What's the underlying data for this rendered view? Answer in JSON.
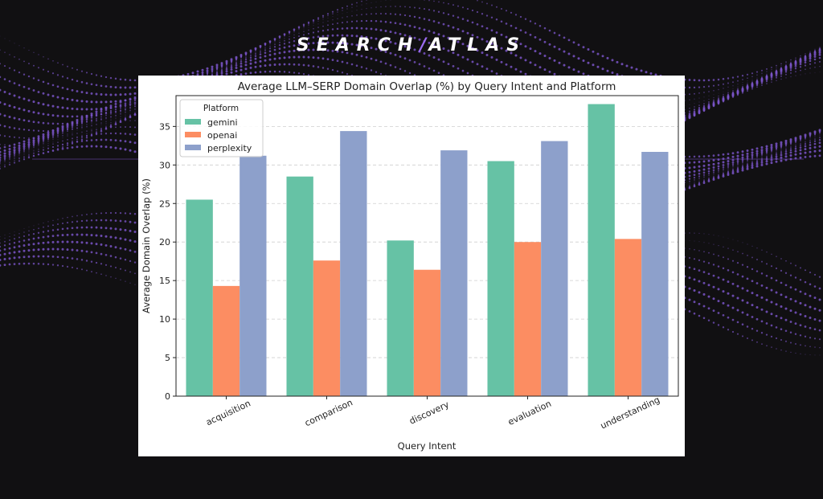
{
  "brand": {
    "left": "SEARCH",
    "separator": "/",
    "right": "ATLAS"
  },
  "colors": {
    "background": "#111012",
    "wave": "#7b55c9",
    "brand_accent": "#9b6cf2",
    "gemini": "#66c2a5",
    "openai": "#fc8d62",
    "perplexity": "#8da0cb"
  },
  "chart_data": {
    "type": "bar",
    "title": "Average LLM–SERP Domain Overlap (%) by Query Intent and Platform",
    "xlabel": "Query Intent",
    "ylabel": "Average Domain Overlap (%)",
    "ylim": [
      0,
      39
    ],
    "yticks": [
      0,
      5,
      10,
      15,
      20,
      25,
      30,
      35
    ],
    "grid": "y-dashed",
    "legend": {
      "title": "Platform",
      "placement": "top-left"
    },
    "categories": [
      "acquisition",
      "comparison",
      "discovery",
      "evaluation",
      "understanding"
    ],
    "series": [
      {
        "name": "gemini",
        "color": "#66c2a5",
        "values": [
          25.5,
          28.5,
          20.2,
          30.5,
          37.9
        ]
      },
      {
        "name": "openai",
        "color": "#fc8d62",
        "values": [
          14.3,
          17.6,
          16.4,
          20.0,
          20.4
        ]
      },
      {
        "name": "perplexity",
        "color": "#8da0cb",
        "values": [
          31.2,
          34.4,
          31.9,
          33.1,
          31.7
        ]
      }
    ]
  }
}
